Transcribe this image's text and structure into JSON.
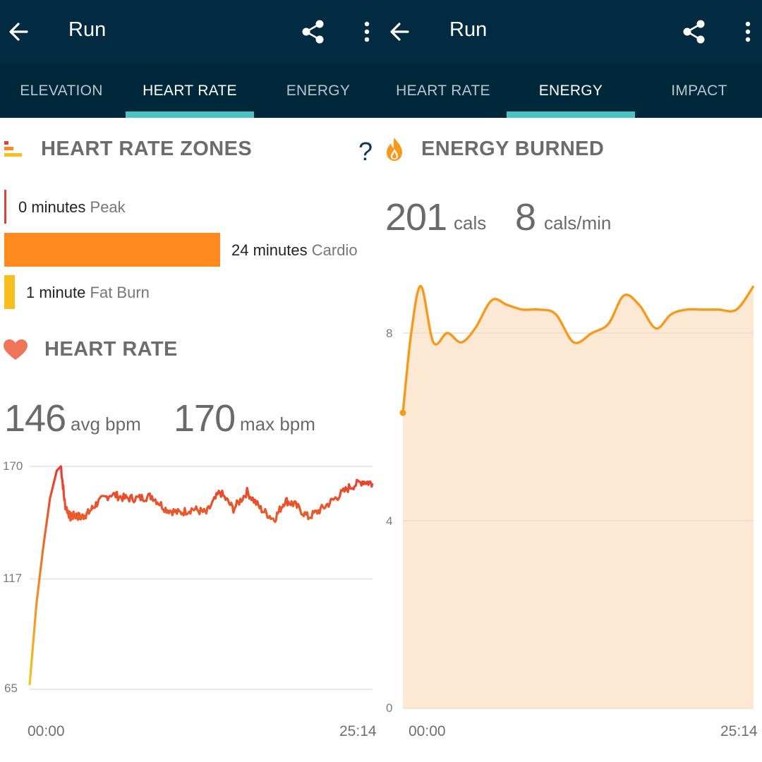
{
  "left": {
    "appbar": {
      "title": "Run"
    },
    "tabs": [
      {
        "label": "ELEVATION",
        "active": false
      },
      {
        "label": "HEART RATE",
        "active": true
      },
      {
        "label": "ENERGY",
        "active": false
      }
    ],
    "zones_section": {
      "title": "HEART RATE ZONES",
      "help": "?",
      "zones": [
        {
          "amount": "0 minutes",
          "name": "Peak",
          "minutes": 0,
          "color": "#e0403a"
        },
        {
          "amount": "24 minutes",
          "name": "Cardio",
          "minutes": 24,
          "color": "#ff8a1f"
        },
        {
          "amount": "1 minute",
          "name": "Fat Burn",
          "minutes": 1,
          "color": "#f6be1e"
        }
      ]
    },
    "heart_section": {
      "title": "HEART RATE",
      "avg_value": "146",
      "avg_unit": "avg bpm",
      "max_value": "170",
      "max_unit": "max bpm"
    },
    "chart_data": {
      "type": "line",
      "title": "HEART RATE",
      "ylabel": "bpm",
      "y_ticks": [
        "170",
        "117",
        "65"
      ],
      "ylim": [
        65,
        170
      ],
      "x_start_label": "00:00",
      "x_end_label": "25:14",
      "x_unit": "minutes",
      "x": [
        0,
        0.5,
        1,
        1.5,
        2,
        2.3,
        2.6,
        3.0,
        3.3,
        3.8,
        4.3,
        5,
        6,
        7,
        8,
        9,
        10,
        11,
        12,
        13,
        14,
        15,
        16,
        17,
        18,
        18.8,
        19.5,
        20.5,
        21.5,
        22.5,
        23.5,
        24.5,
        25.23
      ],
      "values": [
        67,
        105,
        132,
        155,
        168,
        170,
        152,
        146,
        147,
        146,
        148,
        153,
        157,
        155,
        155,
        156,
        150,
        148,
        150,
        148,
        158,
        150,
        158,
        150,
        145,
        154,
        152,
        146,
        150,
        155,
        160,
        163,
        162
      ]
    }
  },
  "right": {
    "appbar": {
      "title": "Run"
    },
    "tabs": [
      {
        "label": "HEART RATE",
        "active": false
      },
      {
        "label": "ENERGY",
        "active": true
      },
      {
        "label": "IMPACT",
        "active": false
      }
    ],
    "energy_section": {
      "title": "ENERGY BURNED",
      "cals_value": "201",
      "cals_unit": "cals",
      "rate_value": "8",
      "rate_unit": "cals/min"
    },
    "chart_data": {
      "type": "area",
      "title": "ENERGY BURNED",
      "ylabel": "cals/min",
      "y_ticks": [
        "8",
        "4",
        "0"
      ],
      "ylim": [
        0,
        9
      ],
      "x_start_label": "00:00",
      "x_end_label": "25:14",
      "x_unit": "minutes",
      "x": [
        0,
        0.6,
        1.3,
        2.2,
        3.2,
        4.2,
        5.2,
        6.4,
        7.5,
        8.6,
        9.8,
        11,
        12.3,
        13.6,
        14.8,
        15.9,
        17,
        18.2,
        19.3,
        20.4,
        21.5,
        22.7,
        24,
        25.23
      ],
      "values": [
        6.3,
        8.0,
        9.0,
        7.8,
        8.0,
        7.8,
        8.1,
        8.7,
        8.6,
        8.5,
        8.5,
        8.4,
        7.8,
        8.0,
        8.2,
        8.8,
        8.6,
        8.1,
        8.4,
        8.5,
        8.5,
        8.5,
        8.5,
        9.0
      ]
    }
  },
  "icons": {
    "back": "arrow-left-icon",
    "share": "share-icon",
    "more": "more-vertical-icon",
    "zones": "bar-zones-icon",
    "heart": "heart-icon",
    "flame": "flame-icon"
  },
  "colors": {
    "appbar": "#022a40",
    "tab_indicator": "#4cc2c4",
    "hr_line_low": "#f6c21e",
    "hr_line_high": "#e53a2e",
    "energy_line": "#f59a1c",
    "energy_fill": "#fde8d3"
  }
}
